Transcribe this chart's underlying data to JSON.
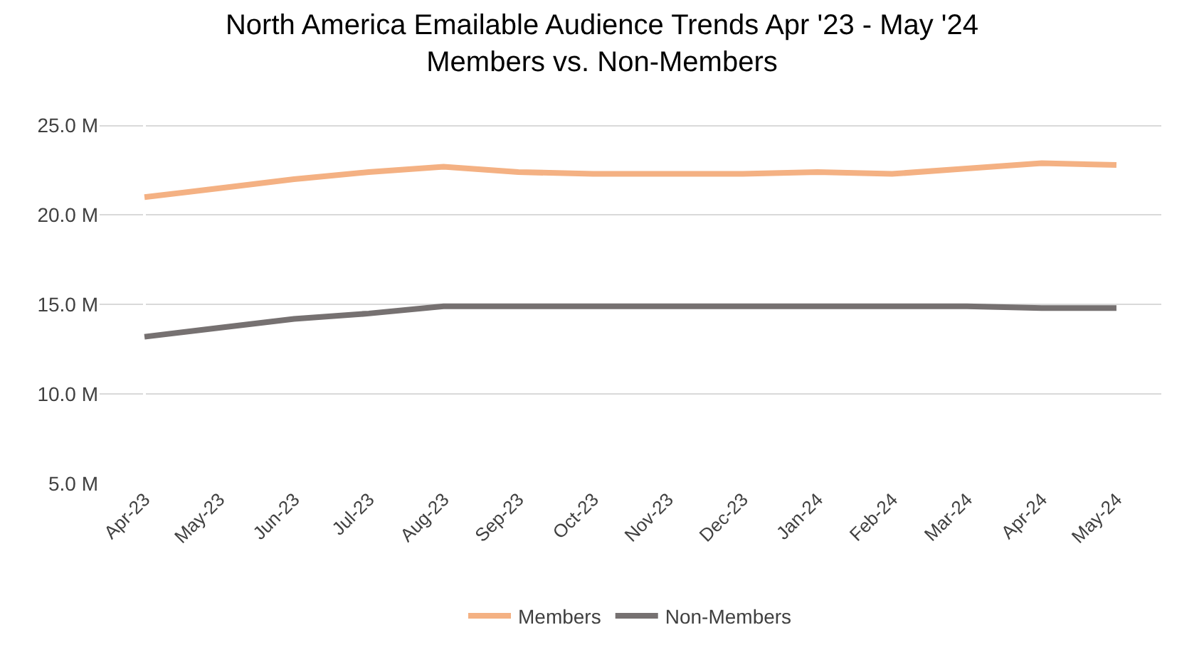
{
  "chart_data": {
    "type": "line",
    "title": "North America Emailable Audience Trends Apr '23 - May '24\nMembers vs. Non-Members",
    "categories": [
      "Apr-23",
      "May-23",
      "Jun-23",
      "Jul-23",
      "Aug-23",
      "Sep-23",
      "Oct-23",
      "Nov-23",
      "Dec-23",
      "Jan-24",
      "Feb-24",
      "Mar-24",
      "Apr-24",
      "May-24"
    ],
    "series": [
      {
        "name": "Members",
        "color": "#f4b183",
        "values": [
          21.0,
          21.5,
          22.0,
          22.4,
          22.7,
          22.4,
          22.3,
          22.3,
          22.3,
          22.4,
          22.3,
          22.6,
          22.9,
          22.8
        ]
      },
      {
        "name": "Non-Members",
        "color": "#767171",
        "values": [
          13.2,
          13.7,
          14.2,
          14.5,
          14.9,
          14.9,
          14.9,
          14.9,
          14.9,
          14.9,
          14.9,
          14.9,
          14.8,
          14.8
        ]
      }
    ],
    "ylim": [
      5,
      25.5
    ],
    "yticks": [
      {
        "value": 5,
        "label": "5.0 M"
      },
      {
        "value": 10,
        "label": "10.0 M"
      },
      {
        "value": 15,
        "label": "15.0 M"
      },
      {
        "value": 20,
        "label": "20.0 M"
      },
      {
        "value": 25,
        "label": "25.0 M"
      }
    ],
    "grid": "y",
    "legend": "bottom",
    "marker": "none",
    "line_style": "solid"
  }
}
